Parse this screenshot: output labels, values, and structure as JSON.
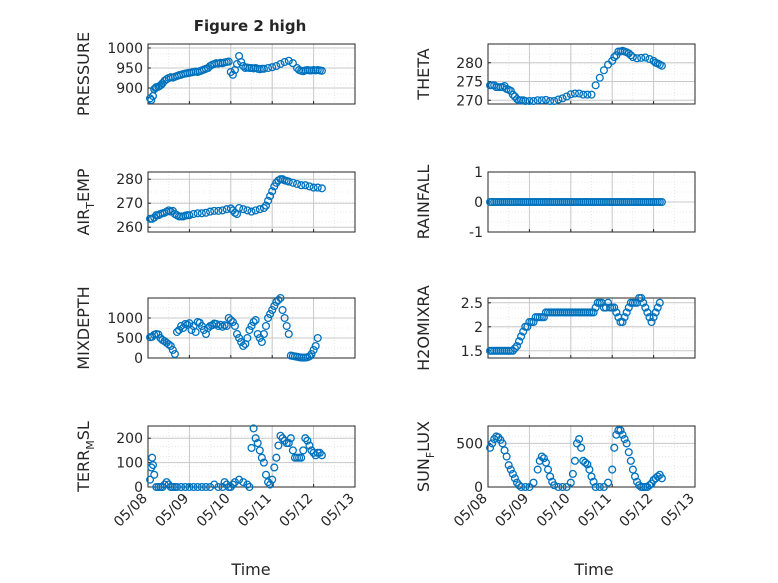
{
  "figure": {
    "title": "Figure 2 high",
    "marker_color": "#0072BD",
    "axis_color": "#262626",
    "grid_color": "#c8c8c8",
    "xlabel": "Time"
  },
  "chart_data": [
    {
      "type": "scatter",
      "ylabel": "PRESSURE",
      "ylim": [
        860,
        1010
      ],
      "yticks": [
        {
          "v": 900,
          "label": "900"
        },
        {
          "v": 950,
          "label": "950"
        },
        {
          "v": 1000,
          "label": "1000"
        }
      ],
      "xlim": [
        0,
        5
      ],
      "grid": true,
      "x": [
        0.05,
        0.08,
        0.12,
        0.15,
        0.18,
        0.2,
        0.25,
        0.28,
        0.32,
        0.35,
        0.4,
        0.45,
        0.5,
        0.55,
        0.6,
        0.65,
        0.7,
        0.75,
        0.8,
        0.85,
        0.9,
        0.95,
        1.0,
        1.05,
        1.1,
        1.15,
        1.2,
        1.25,
        1.3,
        1.35,
        1.4,
        1.45,
        1.5,
        1.55,
        1.6,
        1.65,
        1.7,
        1.75,
        1.8,
        1.85,
        1.9,
        1.95,
        2.0,
        2.05,
        2.1,
        2.15,
        2.2,
        2.25,
        2.3,
        2.35,
        2.4,
        2.45,
        2.5,
        2.55,
        2.6,
        2.65,
        2.7,
        2.75,
        2.8,
        2.9,
        3.0,
        3.1,
        3.2,
        3.3,
        3.4,
        3.5,
        3.6,
        3.65,
        3.7,
        3.75,
        3.8,
        3.85,
        3.9,
        3.95,
        4.0,
        4.05,
        4.1,
        4.15,
        4.2
      ],
      "y": [
        874,
        870,
        880,
        897,
        900,
        902,
        903,
        905,
        908,
        912,
        918,
        922,
        925,
        927,
        926,
        928,
        930,
        932,
        933,
        935,
        936,
        937,
        938,
        939,
        940,
        941,
        940,
        942,
        944,
        946,
        948,
        950,
        955,
        958,
        960,
        962,
        961,
        963,
        962,
        964,
        965,
        966,
        940,
        933,
        945,
        960,
        980,
        965,
        955,
        950,
        951,
        950,
        950,
        949,
        950,
        948,
        947,
        948,
        948,
        950,
        952,
        955,
        960,
        965,
        968,
        962,
        950,
        945,
        943,
        942,
        944,
        945,
        944,
        944,
        945,
        944,
        945,
        944,
        943
      ]
    },
    {
      "type": "scatter",
      "ylabel": "THETA",
      "ylim": [
        269,
        285
      ],
      "yticks": [
        {
          "v": 270,
          "label": "270"
        },
        {
          "v": 275,
          "label": "275"
        },
        {
          "v": 280,
          "label": "280"
        }
      ],
      "xlim": [
        0,
        5
      ],
      "grid": true,
      "x": [
        0.05,
        0.1,
        0.15,
        0.2,
        0.25,
        0.3,
        0.35,
        0.4,
        0.45,
        0.5,
        0.55,
        0.6,
        0.65,
        0.7,
        0.75,
        0.8,
        0.85,
        0.9,
        1.0,
        1.1,
        1.2,
        1.3,
        1.4,
        1.5,
        1.6,
        1.7,
        1.8,
        1.9,
        2.0,
        2.1,
        2.2,
        2.3,
        2.4,
        2.5,
        2.6,
        2.7,
        2.8,
        2.9,
        3.0,
        3.05,
        3.1,
        3.15,
        3.2,
        3.25,
        3.3,
        3.35,
        3.4,
        3.45,
        3.5,
        3.6,
        3.7,
        3.8,
        3.9,
        4.0,
        4.05,
        4.1,
        4.15,
        4.2
      ],
      "y": [
        274,
        274,
        274,
        273.5,
        273.5,
        273.5,
        273.5,
        273.8,
        273,
        272.8,
        272.5,
        271.5,
        271,
        270.3,
        270,
        270,
        270,
        269.8,
        269.8,
        269.8,
        270,
        270,
        270.1,
        269.8,
        269.8,
        270.2,
        270.5,
        271,
        271.6,
        271.8,
        271.8,
        271.5,
        271.5,
        271.5,
        274,
        276,
        278,
        279.5,
        280.5,
        281.5,
        282,
        283,
        283,
        283.2,
        283,
        282.8,
        282.5,
        282,
        281.5,
        281.2,
        281.3,
        281.4,
        281,
        280.5,
        280,
        279.8,
        279.5,
        279.2
      ]
    },
    {
      "type": "scatter",
      "ylabel": "AIR_TEMP",
      "ylim": [
        258,
        283
      ],
      "yticks": [
        {
          "v": 260,
          "label": "260"
        },
        {
          "v": 270,
          "label": "270"
        },
        {
          "v": 280,
          "label": "280"
        }
      ],
      "xlim": [
        0,
        5
      ],
      "grid": true,
      "x": [
        0.05,
        0.1,
        0.15,
        0.2,
        0.25,
        0.3,
        0.35,
        0.4,
        0.45,
        0.5,
        0.55,
        0.6,
        0.65,
        0.7,
        0.75,
        0.8,
        0.85,
        0.9,
        0.95,
        1.0,
        1.1,
        1.2,
        1.3,
        1.4,
        1.5,
        1.6,
        1.7,
        1.8,
        1.9,
        2.0,
        2.05,
        2.1,
        2.15,
        2.2,
        2.3,
        2.4,
        2.5,
        2.6,
        2.7,
        2.8,
        2.85,
        2.9,
        2.95,
        3.0,
        3.05,
        3.1,
        3.15,
        3.2,
        3.25,
        3.3,
        3.35,
        3.4,
        3.5,
        3.6,
        3.7,
        3.8,
        3.9,
        4.0,
        4.1,
        4.2
      ],
      "y": [
        263.5,
        263.5,
        264,
        265,
        265,
        265.5,
        265.8,
        266,
        266.5,
        267,
        266.5,
        266.8,
        265.5,
        265,
        264.5,
        264.5,
        264.5,
        264.8,
        265,
        265,
        265.5,
        265.8,
        265.8,
        266,
        266.5,
        266.8,
        266.8,
        267,
        267.5,
        267.8,
        267,
        266,
        265.5,
        268,
        267.5,
        267,
        266.5,
        267,
        267.5,
        268,
        269,
        271,
        273,
        275,
        277,
        278.5,
        279.5,
        280,
        280,
        279.5,
        279.3,
        279,
        278.5,
        278,
        277.5,
        277.5,
        277,
        276.5,
        276.5,
        276.2
      ]
    },
    {
      "type": "scatter",
      "ylabel": "RAINFALL",
      "ylim": [
        -1,
        1
      ],
      "yticks": [
        {
          "v": -1,
          "label": "-1"
        },
        {
          "v": 0,
          "label": "0"
        },
        {
          "v": 1,
          "label": "1"
        }
      ],
      "xlim": [
        0,
        5
      ],
      "grid": true,
      "x": [
        0.05,
        0.1,
        0.15,
        0.2,
        0.25,
        0.3,
        0.35,
        0.4,
        0.45,
        0.5,
        0.55,
        0.6,
        0.65,
        0.7,
        0.75,
        0.8,
        0.85,
        0.9,
        0.95,
        1.0,
        1.05,
        1.1,
        1.15,
        1.2,
        1.25,
        1.3,
        1.35,
        1.4,
        1.45,
        1.5,
        1.55,
        1.6,
        1.65,
        1.7,
        1.75,
        1.8,
        1.85,
        1.9,
        1.95,
        2.0,
        2.05,
        2.1,
        2.15,
        2.2,
        2.25,
        2.3,
        2.35,
        2.4,
        2.45,
        2.5,
        2.55,
        2.6,
        2.65,
        2.7,
        2.75,
        2.8,
        2.85,
        2.9,
        2.95,
        3.0,
        3.05,
        3.1,
        3.15,
        3.2,
        3.25,
        3.3,
        3.35,
        3.4,
        3.45,
        3.5,
        3.55,
        3.6,
        3.65,
        3.7,
        3.75,
        3.8,
        3.85,
        3.9,
        3.95,
        4.0,
        4.05,
        4.1,
        4.15,
        4.2
      ],
      "y": [
        0,
        0,
        0,
        0,
        0,
        0,
        0,
        0,
        0,
        0,
        0,
        0,
        0,
        0,
        0,
        0,
        0,
        0,
        0,
        0,
        0,
        0,
        0,
        0,
        0,
        0,
        0,
        0,
        0,
        0,
        0,
        0,
        0,
        0,
        0,
        0,
        0,
        0,
        0,
        0,
        0,
        0,
        0,
        0,
        0,
        0,
        0,
        0,
        0,
        0,
        0,
        0,
        0,
        0,
        0,
        0,
        0,
        0,
        0,
        0,
        0,
        0,
        0,
        0,
        0,
        0,
        0,
        0,
        0,
        0,
        0,
        0,
        0,
        0,
        0,
        0,
        0,
        0,
        0,
        0,
        0,
        0,
        0,
        0
      ]
    },
    {
      "type": "scatter",
      "ylabel": "MIXDEPTH",
      "ylim": [
        0,
        1500
      ],
      "yticks": [
        {
          "v": 0,
          "label": "0"
        },
        {
          "v": 500,
          "label": "500"
        },
        {
          "v": 1000,
          "label": "1000"
        }
      ],
      "xlim": [
        0,
        5
      ],
      "grid": true,
      "x": [
        0.05,
        0.1,
        0.15,
        0.2,
        0.25,
        0.3,
        0.35,
        0.4,
        0.45,
        0.5,
        0.55,
        0.6,
        0.65,
        0.7,
        0.75,
        0.8,
        0.85,
        0.9,
        0.95,
        1.0,
        1.05,
        1.1,
        1.15,
        1.2,
        1.25,
        1.3,
        1.35,
        1.4,
        1.45,
        1.5,
        1.55,
        1.6,
        1.65,
        1.7,
        1.75,
        1.8,
        1.85,
        1.9,
        1.95,
        2.0,
        2.05,
        2.1,
        2.15,
        2.2,
        2.25,
        2.3,
        2.35,
        2.4,
        2.45,
        2.5,
        2.55,
        2.6,
        2.65,
        2.7,
        2.75,
        2.8,
        2.85,
        2.9,
        2.95,
        3.0,
        3.05,
        3.1,
        3.15,
        3.2,
        3.25,
        3.3,
        3.35,
        3.4,
        3.45,
        3.5,
        3.55,
        3.6,
        3.65,
        3.7,
        3.75,
        3.8,
        3.85,
        3.9,
        3.95,
        4.0,
        4.05,
        4.1
      ],
      "y": [
        520,
        530,
        580,
        600,
        590,
        500,
        450,
        420,
        380,
        340,
        300,
        200,
        100,
        650,
        700,
        800,
        750,
        850,
        830,
        870,
        700,
        800,
        650,
        900,
        880,
        800,
        700,
        600,
        750,
        800,
        820,
        860,
        850,
        800,
        830,
        780,
        820,
        800,
        1000,
        950,
        900,
        800,
        600,
        500,
        400,
        300,
        350,
        500,
        700,
        800,
        900,
        950,
        600,
        500,
        400,
        600,
        800,
        1000,
        1100,
        1200,
        1300,
        1400,
        1450,
        1500,
        1200,
        1000,
        800,
        600,
        60,
        50,
        40,
        30,
        20,
        10,
        10,
        10,
        20,
        40,
        100,
        200,
        300,
        500
      ]
    },
    {
      "type": "scatter",
      "ylabel": "H2OMIXRA",
      "ylim": [
        1.35,
        2.6
      ],
      "yticks": [
        {
          "v": 1.5,
          "label": "1.5"
        },
        {
          "v": 2,
          "label": "2"
        },
        {
          "v": 2.5,
          "label": "2.5"
        }
      ],
      "xlim": [
        0,
        5
      ],
      "grid": true,
      "x": [
        0.05,
        0.1,
        0.15,
        0.2,
        0.25,
        0.3,
        0.35,
        0.4,
        0.45,
        0.5,
        0.55,
        0.6,
        0.65,
        0.7,
        0.75,
        0.8,
        0.85,
        0.9,
        0.95,
        1.0,
        1.05,
        1.1,
        1.15,
        1.2,
        1.25,
        1.3,
        1.35,
        1.4,
        1.45,
        1.5,
        1.55,
        1.6,
        1.65,
        1.7,
        1.75,
        1.8,
        1.85,
        1.9,
        1.95,
        2.0,
        2.05,
        2.1,
        2.15,
        2.2,
        2.25,
        2.3,
        2.35,
        2.4,
        2.45,
        2.5,
        2.55,
        2.6,
        2.65,
        2.7,
        2.75,
        2.8,
        2.85,
        2.9,
        2.95,
        3.0,
        3.05,
        3.1,
        3.15,
        3.2,
        3.25,
        3.3,
        3.35,
        3.4,
        3.45,
        3.5,
        3.55,
        3.6,
        3.65,
        3.7,
        3.75,
        3.8,
        3.85,
        3.9,
        3.95,
        4.0,
        4.05,
        4.1,
        4.15
      ],
      "y": [
        1.5,
        1.5,
        1.5,
        1.5,
        1.5,
        1.5,
        1.5,
        1.5,
        1.5,
        1.5,
        1.5,
        1.5,
        1.55,
        1.6,
        1.7,
        1.8,
        1.9,
        2.0,
        2.0,
        2.1,
        2.1,
        2.1,
        2.2,
        2.2,
        2.2,
        2.2,
        2.2,
        2.3,
        2.3,
        2.3,
        2.3,
        2.3,
        2.3,
        2.3,
        2.3,
        2.3,
        2.3,
        2.3,
        2.3,
        2.3,
        2.3,
        2.3,
        2.3,
        2.3,
        2.3,
        2.3,
        2.3,
        2.3,
        2.3,
        2.3,
        2.3,
        2.4,
        2.5,
        2.5,
        2.5,
        2.4,
        2.4,
        2.5,
        2.4,
        2.4,
        2.4,
        2.3,
        2.2,
        2.1,
        2.1,
        2.2,
        2.3,
        2.4,
        2.5,
        2.5,
        2.5,
        2.5,
        2.6,
        2.6,
        2.5,
        2.4,
        2.3,
        2.2,
        2.1,
        2.2,
        2.3,
        2.4,
        2.5
      ]
    },
    {
      "type": "scatter",
      "ylabel": "TERR_MSL",
      "ylim": [
        0,
        250
      ],
      "yticks": [
        {
          "v": 0,
          "label": "0"
        },
        {
          "v": 100,
          "label": "100"
        },
        {
          "v": 200,
          "label": "200"
        }
      ],
      "xlim": [
        0,
        5
      ],
      "grid": true,
      "xticks": [
        {
          "v": 0,
          "label": "05/08"
        },
        {
          "v": 1,
          "label": "05/09"
        },
        {
          "v": 2,
          "label": "05/10"
        },
        {
          "v": 3,
          "label": "05/11"
        },
        {
          "v": 4,
          "label": "05/12"
        },
        {
          "v": 5,
          "label": "05/13"
        }
      ],
      "x": [
        0.05,
        0.08,
        0.1,
        0.12,
        0.15,
        0.2,
        0.25,
        0.3,
        0.35,
        0.4,
        0.45,
        0.5,
        0.55,
        0.6,
        0.65,
        0.7,
        0.8,
        0.9,
        1.0,
        1.1,
        1.2,
        1.3,
        1.4,
        1.5,
        1.6,
        1.7,
        1.8,
        1.85,
        1.9,
        1.95,
        2.0,
        2.05,
        2.1,
        2.2,
        2.3,
        2.4,
        2.45,
        2.5,
        2.55,
        2.6,
        2.65,
        2.7,
        2.75,
        2.8,
        2.85,
        2.9,
        2.95,
        3.0,
        3.05,
        3.1,
        3.15,
        3.2,
        3.25,
        3.3,
        3.35,
        3.4,
        3.45,
        3.5,
        3.55,
        3.6,
        3.65,
        3.7,
        3.75,
        3.8,
        3.85,
        3.9,
        3.95,
        4.0,
        4.05,
        4.1,
        4.15,
        4.2
      ],
      "y": [
        30,
        80,
        120,
        90,
        50,
        0,
        0,
        0,
        0,
        10,
        20,
        10,
        0,
        0,
        0,
        0,
        0,
        0,
        0,
        0,
        0,
        0,
        0,
        0,
        10,
        0,
        0,
        20,
        10,
        0,
        0,
        10,
        20,
        30,
        20,
        10,
        0,
        160,
        240,
        200,
        180,
        150,
        120,
        100,
        50,
        20,
        10,
        30,
        80,
        120,
        170,
        210,
        200,
        190,
        180,
        180,
        200,
        150,
        120,
        120,
        120,
        120,
        150,
        200,
        190,
        170,
        150,
        140,
        130,
        140,
        140,
        130
      ]
    },
    {
      "type": "scatter",
      "ylabel": "SUN_FLUX",
      "ylim": [
        0,
        700
      ],
      "yticks": [
        {
          "v": 0,
          "label": "0"
        },
        {
          "v": 500,
          "label": "500"
        }
      ],
      "xlim": [
        0,
        5
      ],
      "grid": true,
      "xticks": [
        {
          "v": 0,
          "label": "05/08"
        },
        {
          "v": 1,
          "label": "05/09"
        },
        {
          "v": 2,
          "label": "05/10"
        },
        {
          "v": 3,
          "label": "05/11"
        },
        {
          "v": 4,
          "label": "05/12"
        },
        {
          "v": 5,
          "label": "05/13"
        }
      ],
      "x": [
        0.05,
        0.1,
        0.15,
        0.2,
        0.25,
        0.3,
        0.35,
        0.4,
        0.45,
        0.5,
        0.55,
        0.6,
        0.65,
        0.7,
        0.75,
        0.8,
        0.9,
        1.0,
        1.1,
        1.2,
        1.25,
        1.3,
        1.35,
        1.4,
        1.45,
        1.5,
        1.55,
        1.6,
        1.7,
        1.8,
        1.9,
        2.0,
        2.05,
        2.1,
        2.15,
        2.2,
        2.25,
        2.3,
        2.35,
        2.4,
        2.45,
        2.5,
        2.55,
        2.6,
        2.7,
        2.8,
        2.9,
        3.0,
        3.05,
        3.1,
        3.15,
        3.2,
        3.25,
        3.3,
        3.35,
        3.4,
        3.45,
        3.5,
        3.55,
        3.6,
        3.65,
        3.7,
        3.75,
        3.8,
        3.85,
        3.9,
        3.95,
        4.0,
        4.05,
        4.1,
        4.15,
        4.2
      ],
      "y": [
        450,
        500,
        550,
        580,
        570,
        540,
        500,
        420,
        350,
        250,
        200,
        150,
        100,
        50,
        20,
        0,
        0,
        0,
        50,
        200,
        300,
        350,
        330,
        280,
        200,
        120,
        60,
        20,
        0,
        0,
        0,
        50,
        150,
        300,
        500,
        550,
        450,
        300,
        280,
        260,
        200,
        120,
        60,
        0,
        0,
        0,
        50,
        200,
        450,
        600,
        650,
        650,
        600,
        550,
        500,
        400,
        300,
        200,
        120,
        60,
        20,
        0,
        0,
        0,
        0,
        20,
        40,
        80,
        100,
        120,
        140,
        100
      ]
    }
  ]
}
